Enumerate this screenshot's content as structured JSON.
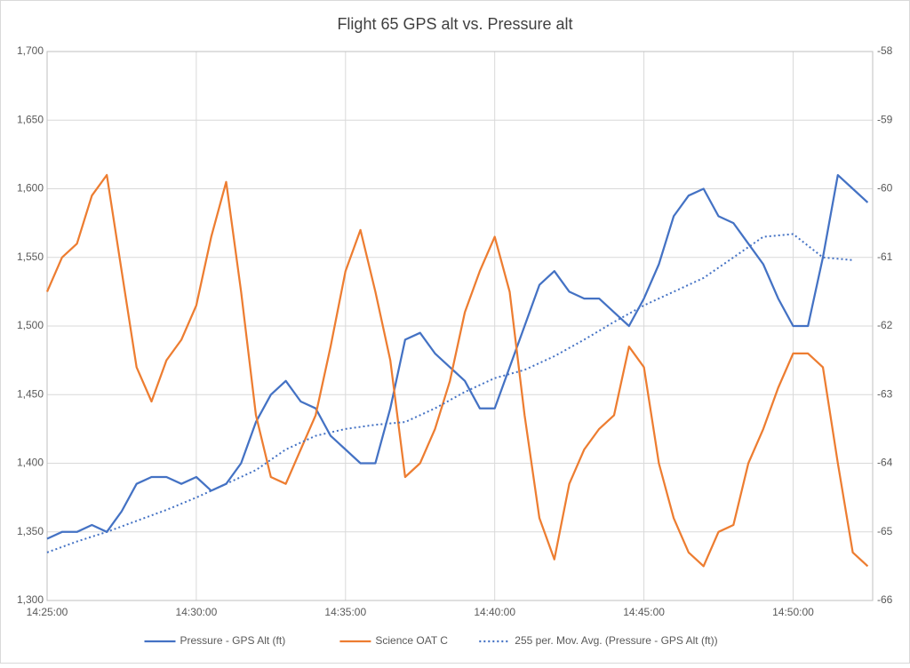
{
  "chart_data": {
    "type": "line",
    "title": "Flight 65 GPS alt vs. Pressure alt",
    "xlim": [
      "14:25:00",
      "14:52:40"
    ],
    "xticks": [
      "14:25:00",
      "14:30:00",
      "14:35:00",
      "14:40:00",
      "14:45:00",
      "14:50:00"
    ],
    "ylim": [
      1300,
      1700
    ],
    "yticks": [
      {
        "value": 1300,
        "label": "1,300"
      },
      {
        "value": 1350,
        "label": "1,350"
      },
      {
        "value": 1400,
        "label": "1,400"
      },
      {
        "value": 1450,
        "label": "1,450"
      },
      {
        "value": 1500,
        "label": "1,500"
      },
      {
        "value": 1550,
        "label": "1,550"
      },
      {
        "value": 1600,
        "label": "1,600"
      },
      {
        "value": 1650,
        "label": "1,650"
      },
      {
        "value": 1700,
        "label": "1,700"
      }
    ],
    "y2lim": [
      -66,
      -58
    ],
    "y2ticks": [
      -66,
      -65,
      -64,
      -63,
      -62,
      -61,
      -60,
      -59,
      -58
    ],
    "grid": true,
    "legend": "bottom",
    "series": [
      {
        "name": "Pressure - GPS Alt (ft)",
        "color": "#4472c4",
        "style": "solid",
        "x": [
          "14:25:00",
          "14:25:30",
          "14:26:00",
          "14:26:30",
          "14:27:00",
          "14:27:30",
          "14:28:00",
          "14:28:30",
          "14:29:00",
          "14:29:30",
          "14:30:00",
          "14:30:30",
          "14:31:00",
          "14:31:30",
          "14:32:00",
          "14:32:30",
          "14:33:00",
          "14:33:30",
          "14:34:00",
          "14:34:30",
          "14:35:00",
          "14:35:30",
          "14:36:00",
          "14:36:30",
          "14:37:00",
          "14:37:30",
          "14:38:00",
          "14:38:30",
          "14:39:00",
          "14:39:30",
          "14:40:00",
          "14:40:30",
          "14:41:00",
          "14:41:30",
          "14:42:00",
          "14:42:30",
          "14:43:00",
          "14:43:30",
          "14:44:00",
          "14:44:30",
          "14:45:00",
          "14:45:30",
          "14:46:00",
          "14:46:30",
          "14:47:00",
          "14:47:30",
          "14:48:00",
          "14:48:30",
          "14:49:00",
          "14:49:30",
          "14:50:00",
          "14:50:30",
          "14:51:00",
          "14:51:30",
          "14:52:00",
          "14:52:30"
        ],
        "values": [
          1345,
          1350,
          1350,
          1355,
          1350,
          1365,
          1385,
          1390,
          1390,
          1385,
          1390,
          1380,
          1385,
          1400,
          1430,
          1450,
          1460,
          1445,
          1440,
          1420,
          1410,
          1400,
          1400,
          1440,
          1490,
          1495,
          1480,
          1470,
          1460,
          1440,
          1440,
          1470,
          1500,
          1530,
          1540,
          1525,
          1520,
          1520,
          1510,
          1500,
          1520,
          1545,
          1580,
          1595,
          1600,
          1580,
          1575,
          1560,
          1545,
          1520,
          1500,
          1500,
          1550,
          1610,
          1600,
          1590
        ]
      },
      {
        "name": "Science OAT C",
        "color": "#ed7d31",
        "style": "solid",
        "axis": "y2",
        "x": [
          "14:25:00",
          "14:25:30",
          "14:26:00",
          "14:26:30",
          "14:27:00",
          "14:27:30",
          "14:28:00",
          "14:28:30",
          "14:29:00",
          "14:29:30",
          "14:30:00",
          "14:30:30",
          "14:31:00",
          "14:31:30",
          "14:32:00",
          "14:32:30",
          "14:33:00",
          "14:33:30",
          "14:34:00",
          "14:34:30",
          "14:35:00",
          "14:35:30",
          "14:36:00",
          "14:36:30",
          "14:37:00",
          "14:37:30",
          "14:38:00",
          "14:38:30",
          "14:39:00",
          "14:39:30",
          "14:40:00",
          "14:40:30",
          "14:41:00",
          "14:41:30",
          "14:42:00",
          "14:42:30",
          "14:43:00",
          "14:43:30",
          "14:44:00",
          "14:44:30",
          "14:45:00",
          "14:45:30",
          "14:46:00",
          "14:46:30",
          "14:47:00",
          "14:47:30",
          "14:48:00",
          "14:48:30",
          "14:49:00",
          "14:49:30",
          "14:50:00",
          "14:50:30",
          "14:51:00",
          "14:51:30",
          "14:52:00",
          "14:52:30"
        ],
        "values": [
          -61.5,
          -61.0,
          -60.8,
          -60.1,
          -59.8,
          -61.2,
          -62.6,
          -63.1,
          -62.5,
          -62.2,
          -61.7,
          -60.7,
          -59.9,
          -61.5,
          -63.3,
          -64.2,
          -64.3,
          -63.8,
          -63.3,
          -62.3,
          -61.2,
          -60.6,
          -61.5,
          -62.5,
          -64.2,
          -64.0,
          -63.5,
          -62.8,
          -61.8,
          -61.2,
          -60.7,
          -61.5,
          -63.3,
          -64.8,
          -65.4,
          -64.3,
          -63.8,
          -63.5,
          -63.3,
          -62.3,
          -62.6,
          -64.0,
          -64.8,
          -65.3,
          -65.5,
          -65.0,
          -64.9,
          -64.0,
          -63.5,
          -62.9,
          -62.4,
          -62.4,
          -62.6,
          -64.0,
          -65.3,
          -65.5
        ]
      },
      {
        "name": "255 per. Mov. Avg. (Pressure - GPS Alt (ft))",
        "color": "#4472c4",
        "style": "dotted",
        "x": [
          "14:25:00",
          "14:26:00",
          "14:27:00",
          "14:28:00",
          "14:29:00",
          "14:30:00",
          "14:31:00",
          "14:32:00",
          "14:33:00",
          "14:34:00",
          "14:35:00",
          "14:36:00",
          "14:37:00",
          "14:38:00",
          "14:39:00",
          "14:40:00",
          "14:41:00",
          "14:42:00",
          "14:43:00",
          "14:44:00",
          "14:45:00",
          "14:46:00",
          "14:47:00",
          "14:48:00",
          "14:49:00",
          "14:50:00",
          "14:51:00",
          "14:52:00"
        ],
        "values": [
          1335,
          1343,
          1350,
          1358,
          1366,
          1375,
          1385,
          1395,
          1410,
          1420,
          1425,
          1428,
          1430,
          1440,
          1452,
          1462,
          1468,
          1478,
          1490,
          1503,
          1515,
          1525,
          1535,
          1550,
          1565,
          1567,
          1550,
          1548
        ]
      }
    ]
  }
}
